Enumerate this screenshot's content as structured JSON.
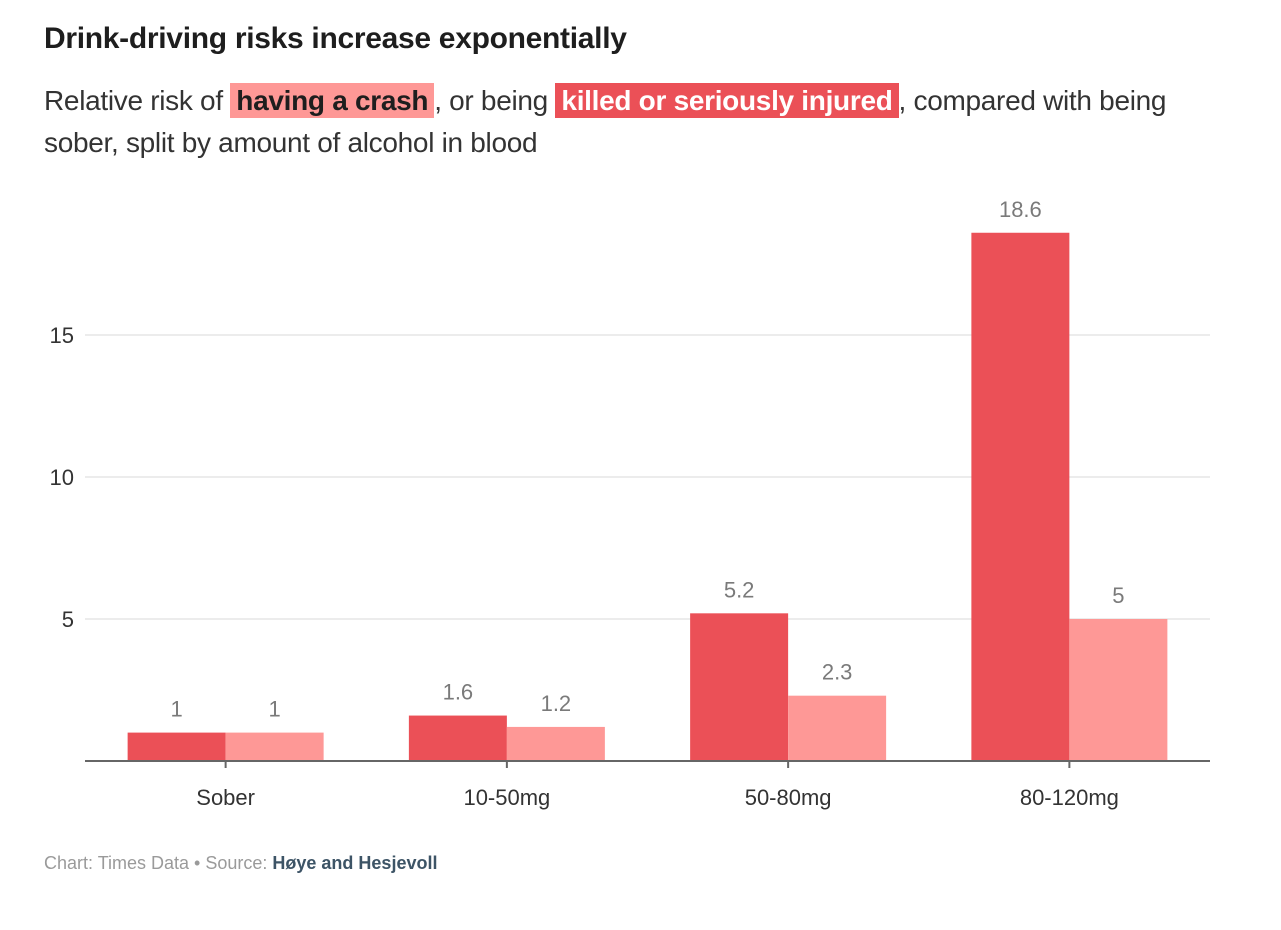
{
  "header": {
    "title": "Drink-driving risks increase exponentially",
    "subtitle_prefix": "Relative risk of ",
    "subtitle_crash": "having a crash",
    "subtitle_middle": ", or being ",
    "subtitle_ksi": "killed or seriously injured",
    "subtitle_suffix": ", compared with being sober, split by amount of alcohol in blood"
  },
  "footer": {
    "credit": "Chart: Times Data",
    "separator": " • ",
    "source_label": "Source: ",
    "source_name": "Høye and Hesjevoll"
  },
  "colors": {
    "crash": "#eb5057",
    "ksi": "#fe9896",
    "grid": "#ececec",
    "axis": "#666666"
  },
  "chart_data": {
    "type": "bar",
    "title": "Drink-driving risks increase exponentially",
    "subtitle": "Relative risk of having a crash, or being killed or seriously injured, compared with being sober, split by amount of alcohol in blood",
    "categories": [
      "Sober",
      "10-50mg",
      "50-80mg",
      "80-120mg"
    ],
    "series": [
      {
        "name": "having a crash",
        "color": "#eb5057",
        "values": [
          1,
          1.6,
          5.2,
          18.6
        ]
      },
      {
        "name": "killed or seriously injured",
        "color": "#fe9896",
        "values": [
          1,
          1.2,
          2.3,
          5
        ]
      }
    ],
    "xlabel": "",
    "ylabel": "",
    "ylim": [
      0,
      19.5
    ],
    "yticks": [
      5,
      10,
      15
    ],
    "grid": true,
    "legend": "inline in subtitle",
    "data_labels": true
  }
}
